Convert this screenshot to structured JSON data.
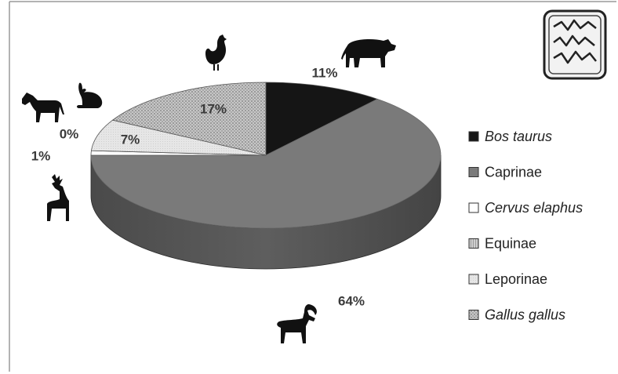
{
  "chart_data": {
    "type": "pie",
    "style": "3d-tilted",
    "categories": [
      "Bos taurus",
      "Caprinae",
      "Cervus elaphus",
      "Equinae",
      "Leporinae",
      "Gallus gallus"
    ],
    "values": [
      11,
      64,
      1,
      0,
      7,
      17
    ],
    "value_labels": [
      "11%",
      "64%",
      "1%",
      "0%",
      "7%",
      "17%"
    ],
    "italic": [
      true,
      false,
      true,
      false,
      false,
      true
    ],
    "legend_position": "right",
    "colors": {
      "Bos taurus": "#151515",
      "Caprinae": "#7a7a7a",
      "Cervus elaphus": "#ffffff",
      "Equinae": "#c4c4c4",
      "Leporinae": "#e4e4e4",
      "Gallus gallus": "#b9b9b9"
    },
    "icons": [
      "cow-icon",
      "goat-icon",
      "deer-icon",
      "horse-icon",
      "rabbit-icon",
      "chicken-icon",
      "seal-logo"
    ],
    "seal_text": "الملك لله"
  }
}
